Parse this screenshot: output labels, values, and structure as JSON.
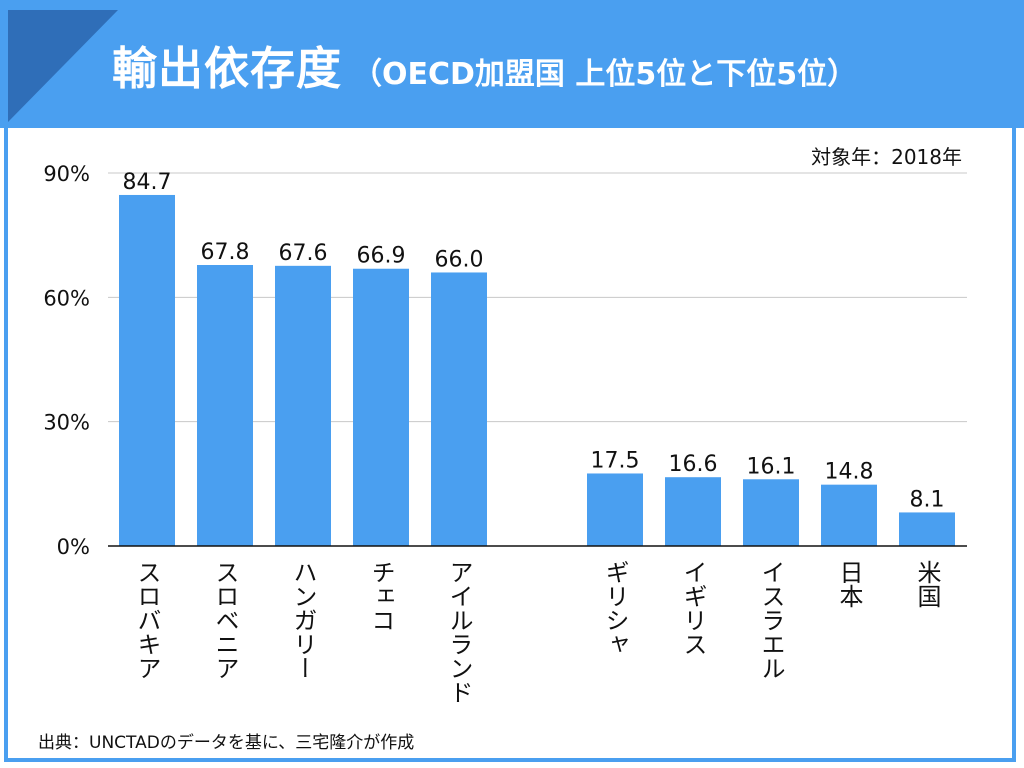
{
  "title": {
    "main": "輸出依存度",
    "sub": "（OECD加盟国 上位5位と下位5位）"
  },
  "target_year": "対象年：2018年",
  "source": "出典：UNCTADのデータを基に、三宅隆介が作成",
  "colors": {
    "header": "#4a9ff0",
    "header_triangle": "#2f6eb8",
    "bar": "#4a9ff0"
  },
  "chart_data": {
    "type": "bar",
    "title": "",
    "xlabel": "",
    "ylabel": "",
    "ylim": [
      0,
      90
    ],
    "yticks": [
      0,
      30,
      60,
      90
    ],
    "ytick_labels": [
      "0%",
      "30%",
      "60%",
      "90%"
    ],
    "grid": true,
    "categories": [
      "スロバキア",
      "スロベニア",
      "ハンガリー",
      "チェコ",
      "アイルランド",
      "ギリシャ",
      "イギリス",
      "イスラエル",
      "日本",
      "米国"
    ],
    "values": [
      84.7,
      67.8,
      67.6,
      66.9,
      66.0,
      17.5,
      16.6,
      16.1,
      14.8,
      8.1
    ],
    "value_labels": [
      "84.7",
      "67.8",
      "67.6",
      "66.9",
      "66.0",
      "17.5",
      "16.6",
      "16.1",
      "14.8",
      "8.1"
    ]
  }
}
